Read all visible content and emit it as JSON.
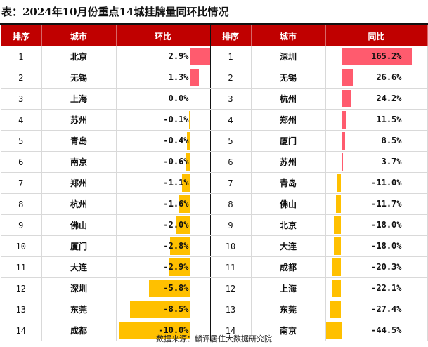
{
  "title": "表：2024年10月份重点14城挂牌量同环比情况",
  "headers": {
    "rank": "排序",
    "city": "城市",
    "mom": "环比",
    "yoy": "同比"
  },
  "colors": {
    "header_bg": "#c00000",
    "positive_bar": "#ff5b6e",
    "negative_bar": "#ffc000"
  },
  "mom_rows": [
    {
      "rank": "1",
      "city": "北京",
      "value_text": "2.9%",
      "value": 2.9
    },
    {
      "rank": "2",
      "city": "无锡",
      "value_text": "1.3%",
      "value": 1.3
    },
    {
      "rank": "3",
      "city": "上海",
      "value_text": "0.0%",
      "value": 0.0
    },
    {
      "rank": "4",
      "city": "苏州",
      "value_text": "-0.1%",
      "value": -0.1
    },
    {
      "rank": "5",
      "city": "青岛",
      "value_text": "-0.4%",
      "value": -0.4
    },
    {
      "rank": "6",
      "city": "南京",
      "value_text": "-0.6%",
      "value": -0.6
    },
    {
      "rank": "7",
      "city": "郑州",
      "value_text": "-1.1%",
      "value": -1.1
    },
    {
      "rank": "8",
      "city": "杭州",
      "value_text": "-1.6%",
      "value": -1.6
    },
    {
      "rank": "9",
      "city": "佛山",
      "value_text": "-2.0%",
      "value": -2.0
    },
    {
      "rank": "10",
      "city": "厦门",
      "value_text": "-2.8%",
      "value": -2.8
    },
    {
      "rank": "11",
      "city": "大连",
      "value_text": "-2.9%",
      "value": -2.9
    },
    {
      "rank": "12",
      "city": "深圳",
      "value_text": "-5.8%",
      "value": -5.8
    },
    {
      "rank": "13",
      "city": "东莞",
      "value_text": "-8.5%",
      "value": -8.5
    },
    {
      "rank": "14",
      "city": "成都",
      "value_text": "-10.0%",
      "value": -10.0
    }
  ],
  "yoy_rows": [
    {
      "rank": "1",
      "city": "深圳",
      "value_text": "165.2%",
      "value": 165.2
    },
    {
      "rank": "2",
      "city": "无锡",
      "value_text": "26.6%",
      "value": 26.6
    },
    {
      "rank": "3",
      "city": "杭州",
      "value_text": "24.2%",
      "value": 24.2
    },
    {
      "rank": "4",
      "city": "郑州",
      "value_text": "11.5%",
      "value": 11.5
    },
    {
      "rank": "5",
      "city": "厦门",
      "value_text": "8.5%",
      "value": 8.5
    },
    {
      "rank": "6",
      "city": "苏州",
      "value_text": "3.7%",
      "value": 3.7
    },
    {
      "rank": "7",
      "city": "青岛",
      "value_text": "-11.0%",
      "value": -11.0
    },
    {
      "rank": "8",
      "city": "佛山",
      "value_text": "-11.7%",
      "value": -11.7
    },
    {
      "rank": "9",
      "city": "北京",
      "value_text": "-18.0%",
      "value": -18.0
    },
    {
      "rank": "10",
      "city": "大连",
      "value_text": "-18.0%",
      "value": -18.0
    },
    {
      "rank": "11",
      "city": "成都",
      "value_text": "-20.3%",
      "value": -20.3
    },
    {
      "rank": "12",
      "city": "上海",
      "value_text": "-22.1%",
      "value": -22.1
    },
    {
      "rank": "13",
      "city": "东莞",
      "value_text": "-27.4%",
      "value": -27.4
    },
    {
      "rank": "14",
      "city": "南京",
      "value_text": "-44.5%",
      "value": -44.5
    }
  ],
  "source": "数据来源：麟评居住大数据研究院"
}
